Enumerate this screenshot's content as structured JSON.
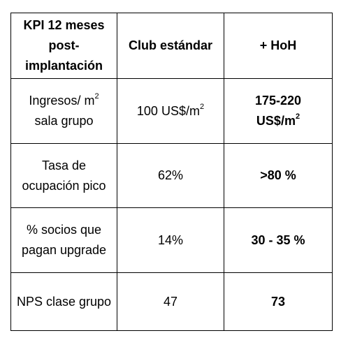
{
  "table": {
    "header": {
      "col1": [
        "KPI 12 meses",
        "post-",
        "implantación"
      ],
      "col2": "Club estándar",
      "col3": "+ HoH"
    },
    "rows": [
      {
        "label_lines": [
          "Ingresos/ m",
          "sala grupo"
        ],
        "label_sup": "2",
        "standard": "100 US$/m",
        "standard_sup": "2",
        "hoh_lines": [
          "175-220",
          "US$/m"
        ],
        "hoh_sup": "2"
      },
      {
        "label_lines": [
          "Tasa de",
          "ocupación pico"
        ],
        "standard": "62%",
        "hoh": ">80 %"
      },
      {
        "label_lines": [
          "% socios que",
          "pagan upgrade"
        ],
        "standard": "14%",
        "hoh": "30 - 35 %"
      },
      {
        "label": "NPS clase grupo",
        "standard": "47",
        "hoh": "73"
      }
    ]
  }
}
